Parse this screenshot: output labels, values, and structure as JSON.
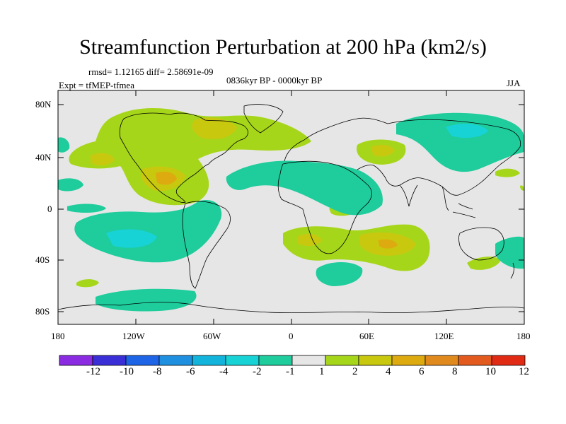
{
  "title": "Streamfunction Perturbation at 200 hPa (km2/s)",
  "stats_line": "rmsd= 1.12165 diff= 2.58691e-09",
  "time_range": "0836kyr BP - 0000kyr BP",
  "experiment": "Expt = tfMEP-tfmea",
  "season": "JJA",
  "lat_labels": [
    "80N",
    "40N",
    "0",
    "40S",
    "80S"
  ],
  "lon_labels": [
    "180",
    "120W",
    "60W",
    "0",
    "60E",
    "120E",
    "180"
  ],
  "colorbar": {
    "colors": [
      "#8A2BE2",
      "#3A2FD6",
      "#1E64E6",
      "#1F8FE0",
      "#12B4DC",
      "#17D3D6",
      "#1ECC9C",
      "#E6E6E6",
      "#A6D61A",
      "#C8C80F",
      "#DDAA0F",
      "#E08A1E",
      "#E35A1E",
      "#E02A14"
    ],
    "labels": [
      "-12",
      "-10",
      "-8",
      "-6",
      "-4",
      "-2",
      "-1",
      "1",
      "2",
      "4",
      "6",
      "8",
      "10",
      "12"
    ]
  },
  "map": {
    "background_color": "#E6E6E6",
    "coastline_color": "#000000"
  }
}
